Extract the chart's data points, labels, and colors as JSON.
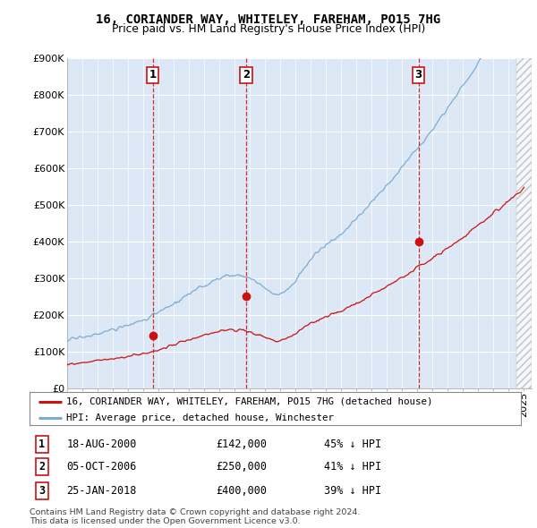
{
  "title": "16, CORIANDER WAY, WHITELEY, FAREHAM, PO15 7HG",
  "subtitle": "Price paid vs. HM Land Registry's House Price Index (HPI)",
  "ylim": [
    0,
    900000
  ],
  "yticks": [
    0,
    100000,
    200000,
    300000,
    400000,
    500000,
    600000,
    700000,
    800000,
    900000
  ],
  "ytick_labels": [
    "£0",
    "£100K",
    "£200K",
    "£300K",
    "£400K",
    "£500K",
    "£600K",
    "£700K",
    "£800K",
    "£900K"
  ],
  "background_color": "#ffffff",
  "plot_bg_color": "#dce8f5",
  "grid_color": "#ffffff",
  "hpi_color": "#7aadd4",
  "price_color": "#cc1111",
  "vline_color": "#cc1111",
  "transactions": [
    {
      "date_num": 2000.63,
      "price": 142000,
      "label": "1"
    },
    {
      "date_num": 2006.76,
      "price": 250000,
      "label": "2"
    },
    {
      "date_num": 2018.07,
      "price": 400000,
      "label": "3"
    }
  ],
  "transaction_table": [
    {
      "label": "1",
      "date": "18-AUG-2000",
      "price": "£142,000",
      "pct": "45% ↓ HPI"
    },
    {
      "label": "2",
      "date": "05-OCT-2006",
      "price": "£250,000",
      "pct": "41% ↓ HPI"
    },
    {
      "label": "3",
      "date": "25-JAN-2018",
      "price": "£400,000",
      "pct": "39% ↓ HPI"
    }
  ],
  "legend_entries": [
    {
      "label": "16, CORIANDER WAY, WHITELEY, FAREHAM, PO15 7HG (detached house)",
      "color": "#cc1111"
    },
    {
      "label": "HPI: Average price, detached house, Winchester",
      "color": "#7aadd4"
    }
  ],
  "footer": "Contains HM Land Registry data © Crown copyright and database right 2024.\nThis data is licensed under the Open Government Licence v3.0.",
  "title_fontsize": 10,
  "subtitle_fontsize": 9,
  "tick_fontsize": 8
}
